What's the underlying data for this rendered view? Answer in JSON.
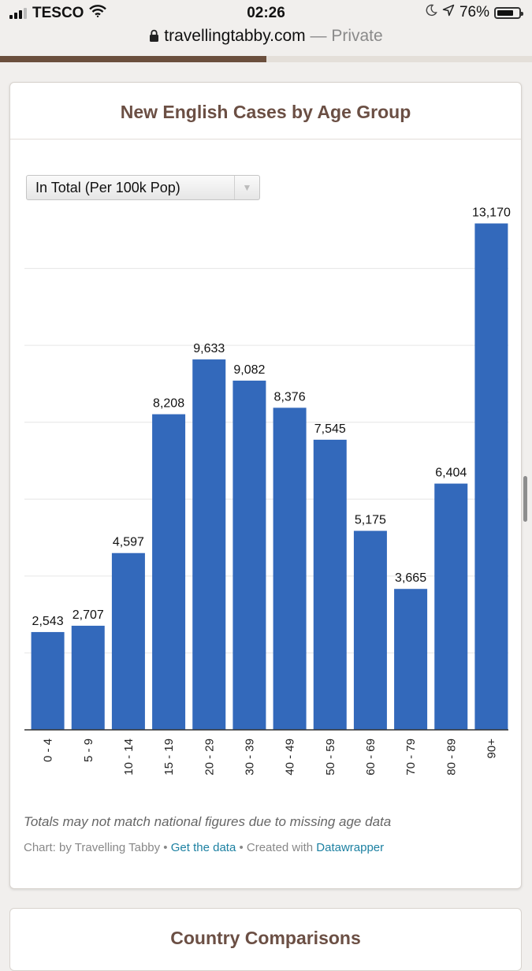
{
  "status_bar": {
    "carrier": "TESCO",
    "time": "02:26",
    "battery": "76%",
    "battery_level": 0.76
  },
  "browser": {
    "domain": "travellingtabby.com",
    "mode": "— Private",
    "load_progress": 0.5
  },
  "card": {
    "title": "New English Cases by Age Group",
    "dropdown_value": "In Total (Per 100k Pop)",
    "note": "Totals may not match national figures due to missing age data",
    "credit_prefix": "Chart: by Travelling Tabby • ",
    "credit_link_data": "Get the data",
    "credit_middle": " • Created with ",
    "credit_link_tool": "Datawrapper"
  },
  "next_card": {
    "title": "Country Comparisons"
  },
  "chart_data": {
    "type": "bar",
    "title": "New English Cases by Age Group",
    "xlabel": "",
    "ylabel": "",
    "categories": [
      "0 - 4",
      "5 - 9",
      "10 - 14",
      "15 - 19",
      "20 - 29",
      "30 - 39",
      "40 - 49",
      "50 - 59",
      "60 - 69",
      "70 - 79",
      "80 - 89",
      "90+"
    ],
    "values": [
      2543,
      2707,
      4597,
      8208,
      9633,
      9082,
      8376,
      7545,
      5175,
      3665,
      6404,
      13170
    ],
    "value_labels": [
      "2,543",
      "2,707",
      "4,597",
      "8,208",
      "9,633",
      "9,082",
      "8,376",
      "7,545",
      "5,175",
      "3,665",
      "6,404",
      "13,170"
    ],
    "ylim": [
      0,
      14000
    ],
    "gridlines": [
      2000,
      4000,
      6000,
      8000,
      10000,
      12000
    ],
    "grid": true,
    "bar_color": "#3369bb"
  }
}
